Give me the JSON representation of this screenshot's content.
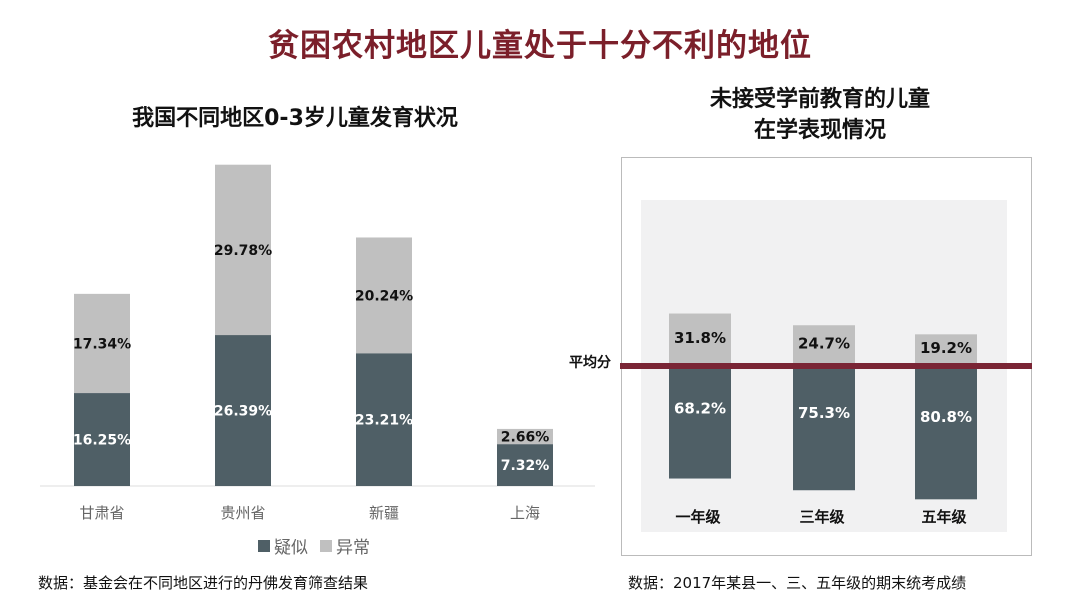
{
  "title": "贫困农村地区儿童处于十分不利的地位",
  "colors": {
    "title": "#7b1f2a",
    "dark": "#4f5f66",
    "light": "#c0c0c0",
    "avg_line": "#7a2535",
    "panel_bg": "#f1f1f2"
  },
  "footnotes": {
    "left": "数据：基金会在不同地区进行的丹佛发育筛查结果",
    "right": "数据：2017年某县一、三、五年级的期末统考成绩"
  },
  "chart_data": [
    {
      "type": "bar",
      "stacked": true,
      "title": "我国不同地区0-3岁儿童发育状况",
      "categories": [
        "甘肃省",
        "贵州省",
        "新疆",
        "上海"
      ],
      "series": [
        {
          "name": "疑似",
          "values": [
            16.25,
            26.39,
            23.21,
            7.32
          ],
          "labels": [
            "16.25%",
            "26.39%",
            "23.21%",
            "7.32%"
          ]
        },
        {
          "name": "异常",
          "values": [
            17.34,
            29.78,
            20.24,
            2.66
          ],
          "labels": [
            "17.34%",
            "29.78%",
            "20.24%",
            "2.66%"
          ]
        }
      ],
      "legend": "bottom",
      "grid": false
    },
    {
      "type": "bar",
      "stacked": true,
      "title_lines": [
        "未接受学前教育的儿童",
        "在学表现情况"
      ],
      "categories": [
        "一年级",
        "三年级",
        "五年级"
      ],
      "series": [
        {
          "values": [
            68.2,
            75.3,
            80.8
          ],
          "labels": [
            "68.2%",
            "75.3%",
            "80.8%"
          ]
        },
        {
          "values": [
            31.8,
            24.7,
            19.2
          ],
          "labels": [
            "31.8%",
            "24.7%",
            "19.2%"
          ]
        }
      ],
      "reference_line": {
        "label": "平均分"
      },
      "grid": false
    }
  ]
}
